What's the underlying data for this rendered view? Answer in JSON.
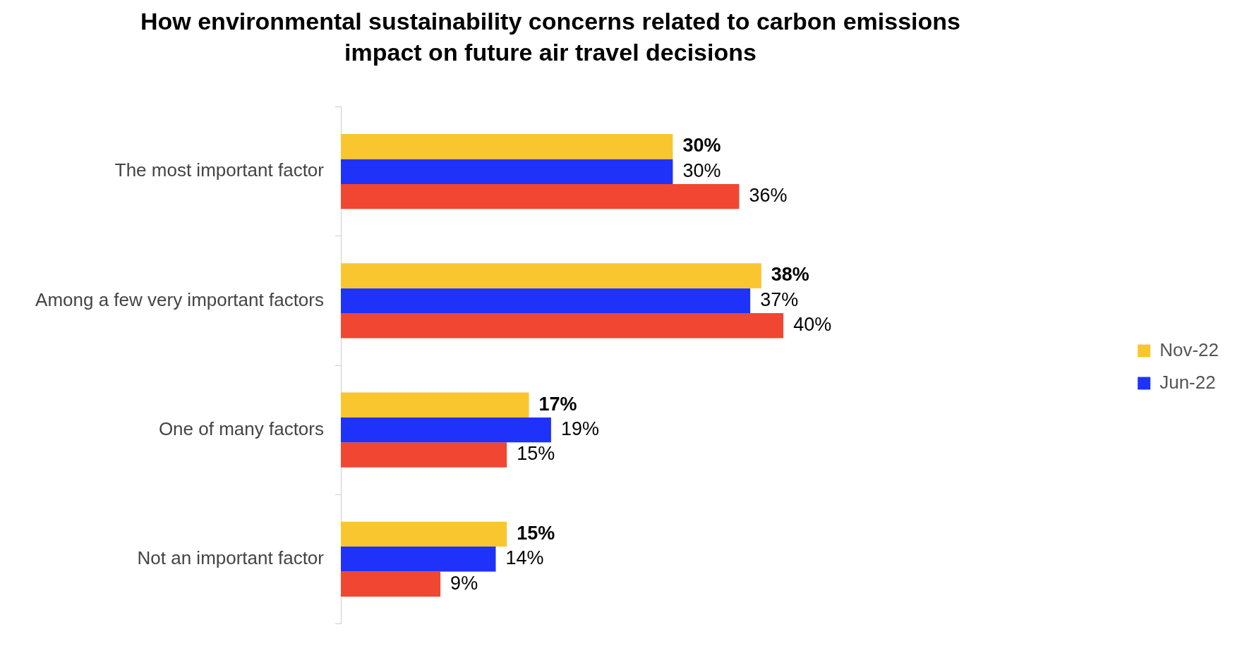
{
  "chart_data": {
    "type": "bar",
    "orientation": "horizontal",
    "title": "How environmental sustainability concerns related to carbon emissions impact on future air travel decisions",
    "categories": [
      "The most important factor",
      "Among a few very important factors",
      "One of many factors",
      "Not an important factor"
    ],
    "series": [
      {
        "name": "Nov-22",
        "color": "#f9c630",
        "values": [
          30,
          38,
          17,
          15
        ],
        "value_labels": [
          "30%",
          "38%",
          "17%",
          "15%"
        ]
      },
      {
        "name": "Jun-22",
        "color": "#1f32f9",
        "values": [
          30,
          37,
          19,
          14
        ],
        "value_labels": [
          "30%",
          "37%",
          "19%",
          "14%"
        ]
      },
      {
        "color": "#f04632",
        "values": [
          36,
          40,
          15,
          9
        ],
        "value_labels": [
          "36%",
          "40%",
          "15%",
          "9%"
        ]
      }
    ],
    "data_labels": true,
    "legend": "right",
    "grid": false
  }
}
